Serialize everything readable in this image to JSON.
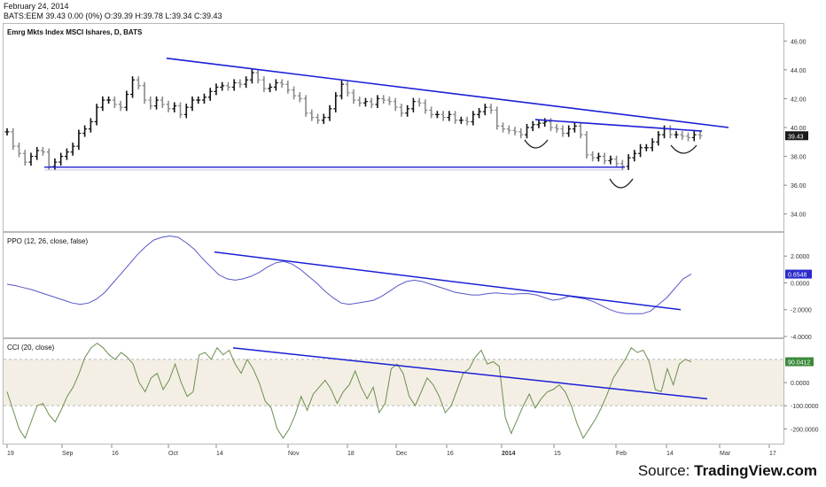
{
  "header": {
    "date": "February 24, 2014",
    "quote": "BATS:EEM  39.43 0.00 (0%) O:39.39 H:39.78 L:39.34 C:39.43"
  },
  "source": {
    "prefix": "Source: ",
    "brand": "TradingView.com"
  },
  "colors": {
    "trendline": "#1a1fd6",
    "ppo_line": "#5757c8",
    "cci_line": "#6b8f4f",
    "cci_band": "#f4efe4",
    "price_bar_up": "#111111",
    "price_bar_down": "#8a8a8a",
    "cci_tag": "#3a8a3a",
    "ppo_tag": "#2a2acc"
  },
  "chart_data": [
    {
      "type": "ohlc",
      "title": "Emrg Mkts Index MSCI Ishares, D, BATS",
      "xticks": [
        "19",
        "Sep",
        "16",
        "Oct",
        "14",
        "Nov",
        "18",
        "Dec",
        "16",
        "2014",
        "15",
        "Feb",
        "14",
        "Mar",
        "17"
      ],
      "ylim": [
        33.0,
        47.0
      ],
      "yticks": [
        "46.00",
        "44.00",
        "42.00",
        "40.00",
        "38.00",
        "36.00",
        "34.00"
      ],
      "last_value_tag": "39.43",
      "closes": [
        39.7,
        38.7,
        38.2,
        37.6,
        38.0,
        38.4,
        38.3,
        37.3,
        37.6,
        38.0,
        38.3,
        38.7,
        39.6,
        39.9,
        40.4,
        41.4,
        41.9,
        41.9,
        41.6,
        41.4,
        42.3,
        43.3,
        42.9,
        41.9,
        41.5,
        41.9,
        41.6,
        41.3,
        41.5,
        40.9,
        41.4,
        41.9,
        41.9,
        42.1,
        42.5,
        42.8,
        42.9,
        42.8,
        43.1,
        43.0,
        43.3,
        43.8,
        43.3,
        42.7,
        42.8,
        43.1,
        43.0,
        42.6,
        42.2,
        42.0,
        41.0,
        40.7,
        40.5,
        40.7,
        41.3,
        42.2,
        43.0,
        42.4,
        41.9,
        41.7,
        41.8,
        41.6,
        42.0,
        41.9,
        41.8,
        41.4,
        41.0,
        41.3,
        41.8,
        41.7,
        41.2,
        40.9,
        40.9,
        40.7,
        40.9,
        40.5,
        40.5,
        40.4,
        40.9,
        41.1,
        41.4,
        41.2,
        40.1,
        39.9,
        39.8,
        39.7,
        39.5,
        40.0,
        40.2,
        40.3,
        40.4,
        40.0,
        39.9,
        39.6,
        39.9,
        40.1,
        39.5,
        38.1,
        37.9,
        38.0,
        37.7,
        37.8,
        37.5,
        37.3,
        37.9,
        38.2,
        38.6,
        38.6,
        39.0,
        39.5,
        39.9,
        39.5,
        39.5,
        39.4,
        39.3,
        39.5,
        39.43
      ],
      "annotations": {
        "upper_trendline": {
          "from": [
            "~Oct 6",
            44.8
          ],
          "to": [
            "~Mar 1",
            40.0
          ]
        },
        "neckline": {
          "from": [
            "~Jan 6",
            40.5
          ],
          "to": [
            "~Feb 26",
            39.8
          ]
        },
        "support_line": {
          "from": [
            "~Aug 26",
            37.2
          ],
          "to": [
            "~Feb 5",
            37.2
          ]
        },
        "head_and_shoulders_arcs": [
          "left shoulder ~Jan 12",
          "head ~Feb 4",
          "right shoulder ~Feb 21"
        ]
      }
    },
    {
      "type": "line",
      "title": "PPO (12, 26, close, false)",
      "ylim": [
        -4.0,
        3.6
      ],
      "yticks": [
        "2.0000",
        "0.0000",
        "-2.0000",
        "-4.0000"
      ],
      "last_value_tag": "0.6548",
      "values": [
        -0.1,
        -0.2,
        -0.35,
        -0.5,
        -0.7,
        -0.9,
        -1.1,
        -1.3,
        -1.5,
        -1.6,
        -1.5,
        -1.2,
        -0.7,
        0.0,
        0.7,
        1.4,
        2.1,
        2.7,
        3.2,
        3.4,
        3.5,
        3.4,
        3.0,
        2.5,
        1.8,
        1.2,
        0.6,
        0.3,
        0.2,
        0.3,
        0.5,
        0.8,
        1.2,
        1.5,
        1.6,
        1.4,
        1.0,
        0.5,
        0.0,
        -0.6,
        -1.1,
        -1.5,
        -1.6,
        -1.5,
        -1.4,
        -1.3,
        -1.0,
        -0.6,
        -0.2,
        0.1,
        0.2,
        0.1,
        -0.1,
        -0.3,
        -0.5,
        -0.7,
        -0.8,
        -0.9,
        -0.9,
        -0.8,
        -0.75,
        -0.8,
        -0.85,
        -0.8,
        -0.8,
        -0.9,
        -1.1,
        -1.3,
        -1.2,
        -1.0,
        -1.1,
        -1.2,
        -1.4,
        -1.7,
        -2.0,
        -2.2,
        -2.3,
        -2.3,
        -2.3,
        -2.1,
        -1.6,
        -1.1,
        -0.4,
        0.3,
        0.65
      ],
      "annotations": {
        "trendline": {
          "from": [
            "~Oct 14",
            2.3
          ],
          "to": [
            "~Feb 26",
            -2.0
          ]
        }
      }
    },
    {
      "type": "line",
      "title": "CCI (20, close)",
      "ylim": [
        -260,
        180
      ],
      "yticks": [
        "0.0000",
        "-100.0000",
        "-200.0000"
      ],
      "band": [
        -100,
        100
      ],
      "last_value_tag": "90.0412",
      "values": [
        -40,
        -120,
        -200,
        -240,
        -170,
        -100,
        -90,
        -140,
        -170,
        -120,
        -60,
        -20,
        40,
        110,
        150,
        170,
        150,
        120,
        100,
        130,
        110,
        80,
        0,
        -40,
        20,
        40,
        -30,
        10,
        80,
        0,
        -60,
        -40,
        120,
        130,
        100,
        150,
        120,
        140,
        80,
        40,
        100,
        60,
        0,
        -80,
        -110,
        -200,
        -240,
        -200,
        -140,
        -60,
        -120,
        -50,
        -20,
        10,
        -30,
        -90,
        -40,
        -10,
        50,
        -20,
        -70,
        -20,
        -130,
        -90,
        60,
        80,
        40,
        -60,
        -100,
        -40,
        20,
        -10,
        -60,
        -130,
        -100,
        -30,
        40,
        60,
        110,
        140,
        80,
        90,
        70,
        -150,
        -220,
        -160,
        -100,
        -50,
        -110,
        -70,
        -40,
        -30,
        -10,
        -40,
        -100,
        -180,
        -240,
        -200,
        -160,
        -110,
        -50,
        20,
        60,
        100,
        150,
        130,
        140,
        90,
        -30,
        -40,
        60,
        -10,
        80,
        100,
        90
      ],
      "annotations": {
        "trendline": {
          "from": [
            "~Oct 20",
            150
          ],
          "to": [
            "~Feb 28",
            -70
          ]
        }
      }
    }
  ]
}
